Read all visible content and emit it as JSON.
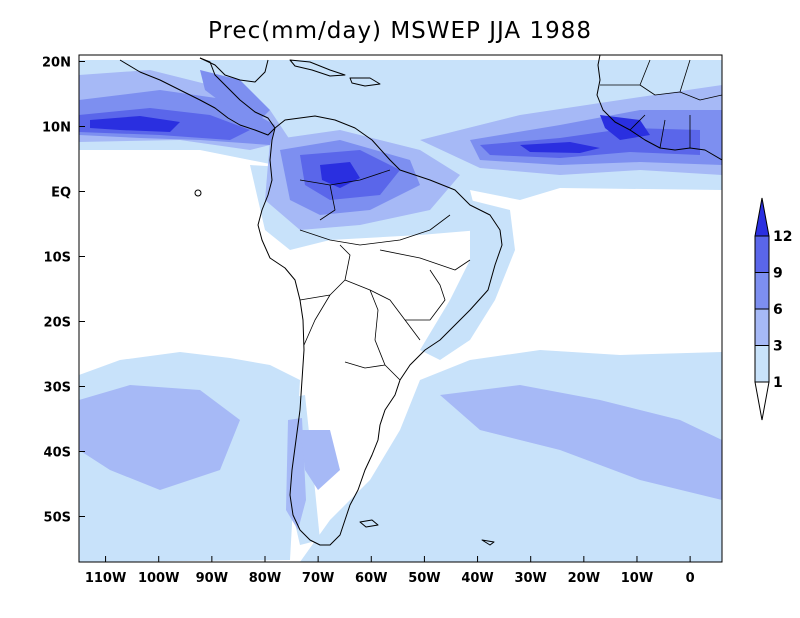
{
  "title": "Prec(mm/day) MSWEP JJA 1988",
  "map": {
    "lon_range": [
      -115,
      6
    ],
    "lat_range": [
      -57,
      21
    ],
    "x_ticks": [
      {
        "lon": -110,
        "label": "110W"
      },
      {
        "lon": -100,
        "label": "100W"
      },
      {
        "lon": -90,
        "label": "90W"
      },
      {
        "lon": -80,
        "label": "80W"
      },
      {
        "lon": -70,
        "label": "70W"
      },
      {
        "lon": -60,
        "label": "60W"
      },
      {
        "lon": -50,
        "label": "50W"
      },
      {
        "lon": -40,
        "label": "40W"
      },
      {
        "lon": -30,
        "label": "30W"
      },
      {
        "lon": -20,
        "label": "20W"
      },
      {
        "lon": -10,
        "label": "10W"
      },
      {
        "lon": 0,
        "label": "0"
      }
    ],
    "y_ticks": [
      {
        "lat": 20,
        "label": "20N"
      },
      {
        "lat": 10,
        "label": "10N"
      },
      {
        "lat": 0,
        "label": "EQ"
      },
      {
        "lat": -10,
        "label": "10S"
      },
      {
        "lat": -20,
        "label": "20S"
      },
      {
        "lat": -30,
        "label": "30S"
      },
      {
        "lat": -40,
        "label": "40S"
      },
      {
        "lat": -50,
        "label": "50S"
      }
    ],
    "colors": {
      "lt1": "#ffffff",
      "1to3": "#c8e2fa",
      "3to6": "#a6b9f6",
      "6to9": "#7d8ff0",
      "9to12": "#5a66ea",
      "gt12": "#2a2fe0"
    }
  },
  "colorbar": {
    "levels": [
      "1",
      "3",
      "6",
      "9",
      "12"
    ],
    "colors": [
      "#ffffff",
      "#c8e2fa",
      "#a6b9f6",
      "#7d8ff0",
      "#5a66ea",
      "#2a2fe0"
    ]
  }
}
